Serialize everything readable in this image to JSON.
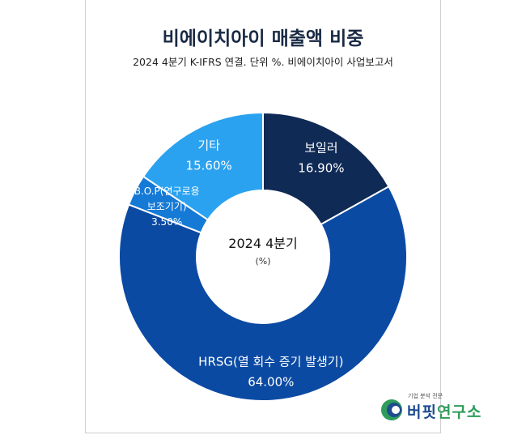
{
  "title": "비에이치아이 매출액 비중",
  "subtitle": "2024 4분기 K-IFRS 연결. 단위 %. 비에이치아이 사업보고서",
  "logo": {
    "tagline": "기업 분석 전문",
    "name_a": "버핏",
    "name_b": "연구소"
  },
  "chart_data": {
    "type": "pie",
    "donut": true,
    "center_label": "2024 4분기",
    "center_sublabel": "(%)",
    "slices": [
      {
        "label": "보일러",
        "value": 16.9,
        "value_label": "16.90%",
        "color": "#0f2a55",
        "label_lines": [
          "보일러"
        ]
      },
      {
        "label": "HRSG(열 회수 증기 발생기)",
        "value": 64.0,
        "value_label": "64.00%",
        "color": "#0b4aa3",
        "label_lines": [
          "HRSG(열 회수 증기 발생기)"
        ]
      },
      {
        "label": "B.O.P(연구로용 보조기기)",
        "value": 3.5,
        "value_label": "3.50%",
        "color": "#1579d6",
        "label_lines": [
          "B.O.P(연구로용",
          "보조기기)"
        ]
      },
      {
        "label": "기타",
        "value": 15.6,
        "value_label": "15.60%",
        "color": "#2aa2f0",
        "label_lines": [
          "기타"
        ]
      }
    ]
  }
}
